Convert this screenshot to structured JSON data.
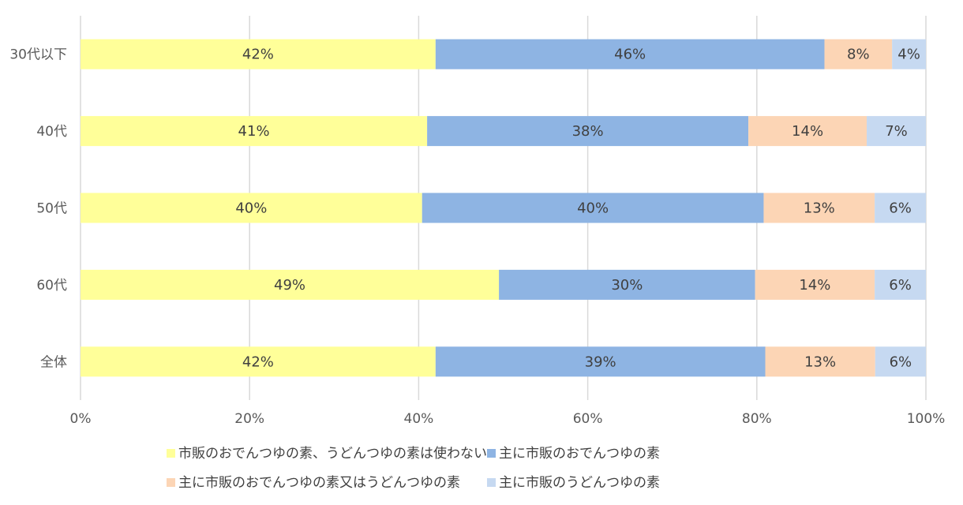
{
  "chart_data": {
    "type": "bar",
    "orientation": "horizontal",
    "stacked": true,
    "percent_stacked": true,
    "categories": [
      "30代以下",
      "40代",
      "50代",
      "60代",
      "全体"
    ],
    "series": [
      {
        "name": "市販のおでんつゆの素、うどんつゆの素は使わない",
        "color": "#FFFF99",
        "values": [
          42,
          41,
          40,
          49,
          42
        ],
        "labels": [
          "42%",
          "41%",
          "40%",
          "49%",
          "42%"
        ]
      },
      {
        "name": "主に市販のおでんつゆの素",
        "color": "#8EB4E3",
        "values": [
          46,
          38,
          40,
          30,
          39
        ],
        "labels": [
          "46%",
          "38%",
          "40%",
          "30%",
          "39%"
        ]
      },
      {
        "name": "主に市販のおでんつゆの素又はうどんつゆの素",
        "color": "#FCD5B5",
        "values": [
          8,
          14,
          13,
          14,
          13
        ],
        "labels": [
          "8%",
          "14%",
          "13%",
          "14%",
          "13%"
        ]
      },
      {
        "name": "主に市販のうどんつゆの素",
        "color": "#C6D9F1",
        "values": [
          4,
          7,
          6,
          6,
          6
        ],
        "labels": [
          "4%",
          "7%",
          "6%",
          "6%",
          "6%"
        ]
      }
    ],
    "xlim": [
      0,
      100
    ],
    "x_ticks": [
      "0%",
      "20%",
      "40%",
      "60%",
      "80%",
      "100%"
    ],
    "grid": true,
    "legend_position": "bottom",
    "title": "",
    "xlabel": "",
    "ylabel": ""
  }
}
